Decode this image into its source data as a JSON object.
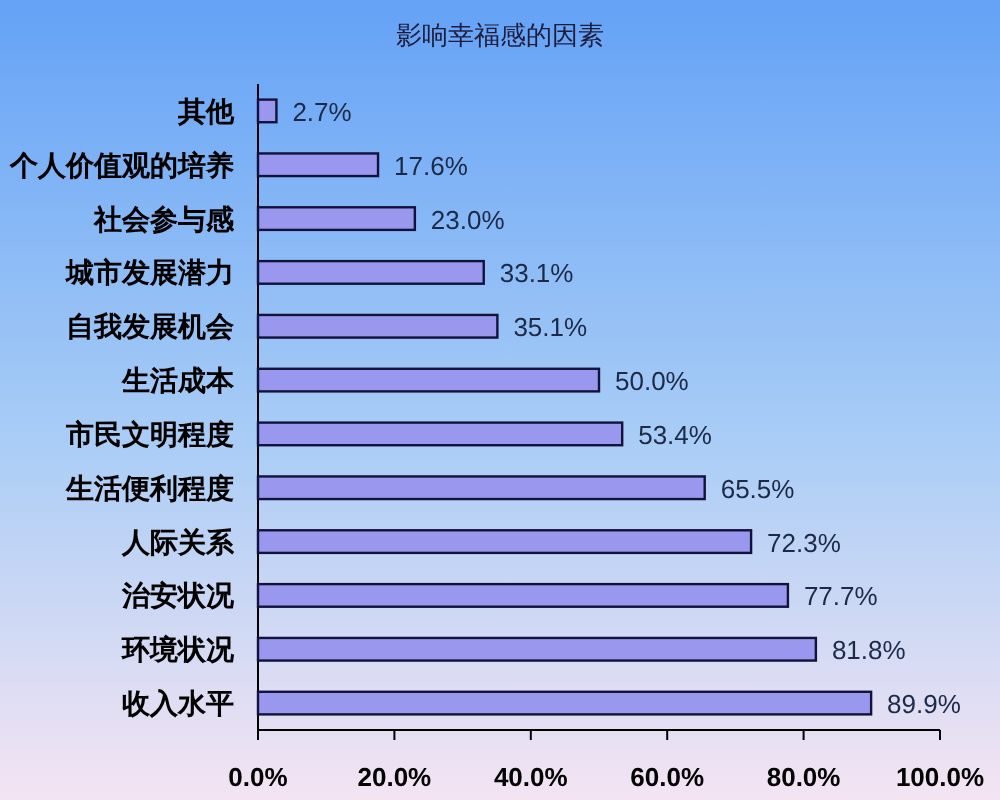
{
  "chart_data": {
    "type": "bar",
    "orientation": "horizontal",
    "title": "影响幸福感的因素",
    "categories": [
      "其他",
      "个人价值观的培养",
      "社会参与感",
      "城市发展潜力",
      "自我发展机会",
      "生活成本",
      "市民文明程度",
      "生活便利程度",
      "人际关系",
      "治安状况",
      "环境状况",
      "收入水平"
    ],
    "values": [
      2.7,
      17.6,
      23.0,
      33.1,
      35.1,
      50.0,
      53.4,
      65.5,
      72.3,
      77.7,
      81.8,
      89.9
    ],
    "value_labels": [
      "2.7%",
      "17.6%",
      "23.0%",
      "33.1%",
      "35.1%",
      "50.0%",
      "53.4%",
      "65.5%",
      "72.3%",
      "77.7%",
      "81.8%",
      "89.9%"
    ],
    "color": "#9a98ee",
    "xlim": [
      0,
      100
    ],
    "xticks": [
      {
        "value": 0,
        "label": "0.0%"
      },
      {
        "value": 20,
        "label": "20.0%"
      },
      {
        "value": 40,
        "label": "40.0%"
      },
      {
        "value": 60,
        "label": "60.0%"
      },
      {
        "value": 80,
        "label": "80.0%"
      },
      {
        "value": 100,
        "label": "100.0%"
      }
    ]
  }
}
